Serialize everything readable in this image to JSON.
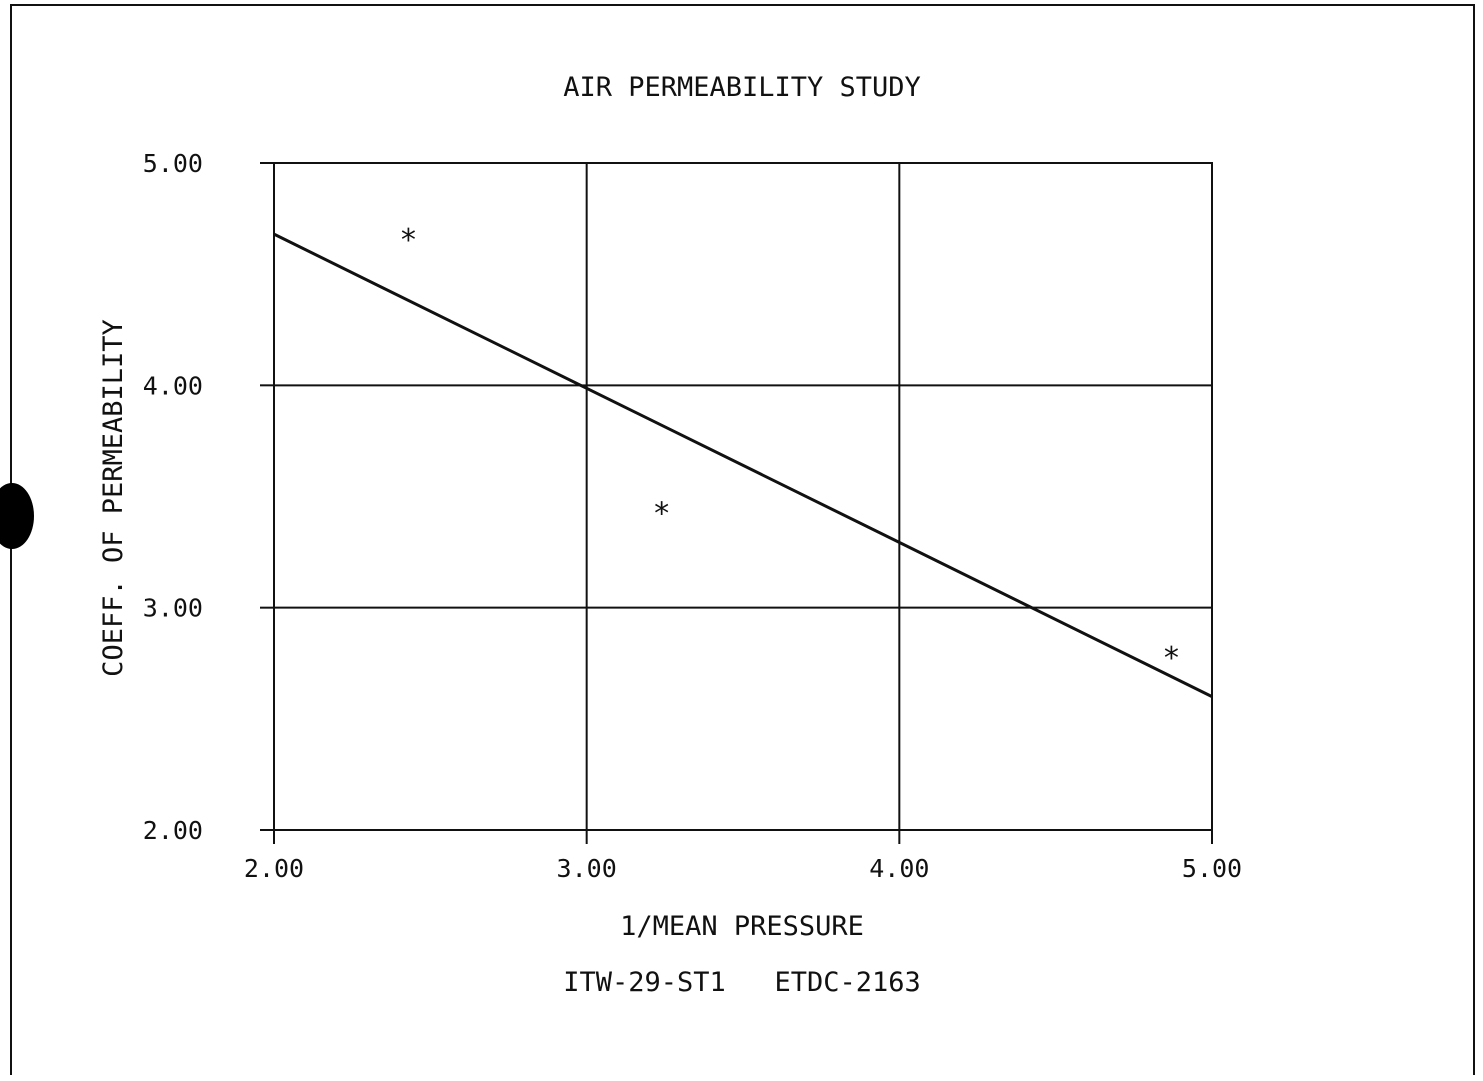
{
  "chart_data": {
    "type": "scatter",
    "title": "AIR PERMEABILITY STUDY",
    "xlabel": "1/MEAN PRESSURE",
    "ylabel": "COEFF. OF PERMEABILITY",
    "caption": "ITW-29-ST1   ETDC-2163",
    "xlim": [
      2.0,
      5.0
    ],
    "ylim": [
      2.0,
      5.0
    ],
    "x_ticks": [
      "2.00",
      "3.00",
      "4.00",
      "5.00"
    ],
    "y_ticks": [
      "2.00",
      "3.00",
      "4.00",
      "5.00"
    ],
    "grid": true,
    "points": [
      {
        "x": 2.43,
        "y": 4.68
      },
      {
        "x": 3.24,
        "y": 3.45
      },
      {
        "x": 4.87,
        "y": 2.8
      }
    ],
    "fit_line": {
      "x": [
        2.0,
        5.0
      ],
      "y": [
        4.68,
        2.6
      ]
    },
    "marker": "*",
    "colors": {
      "ink": "#111111",
      "background": "#ffffff"
    }
  }
}
